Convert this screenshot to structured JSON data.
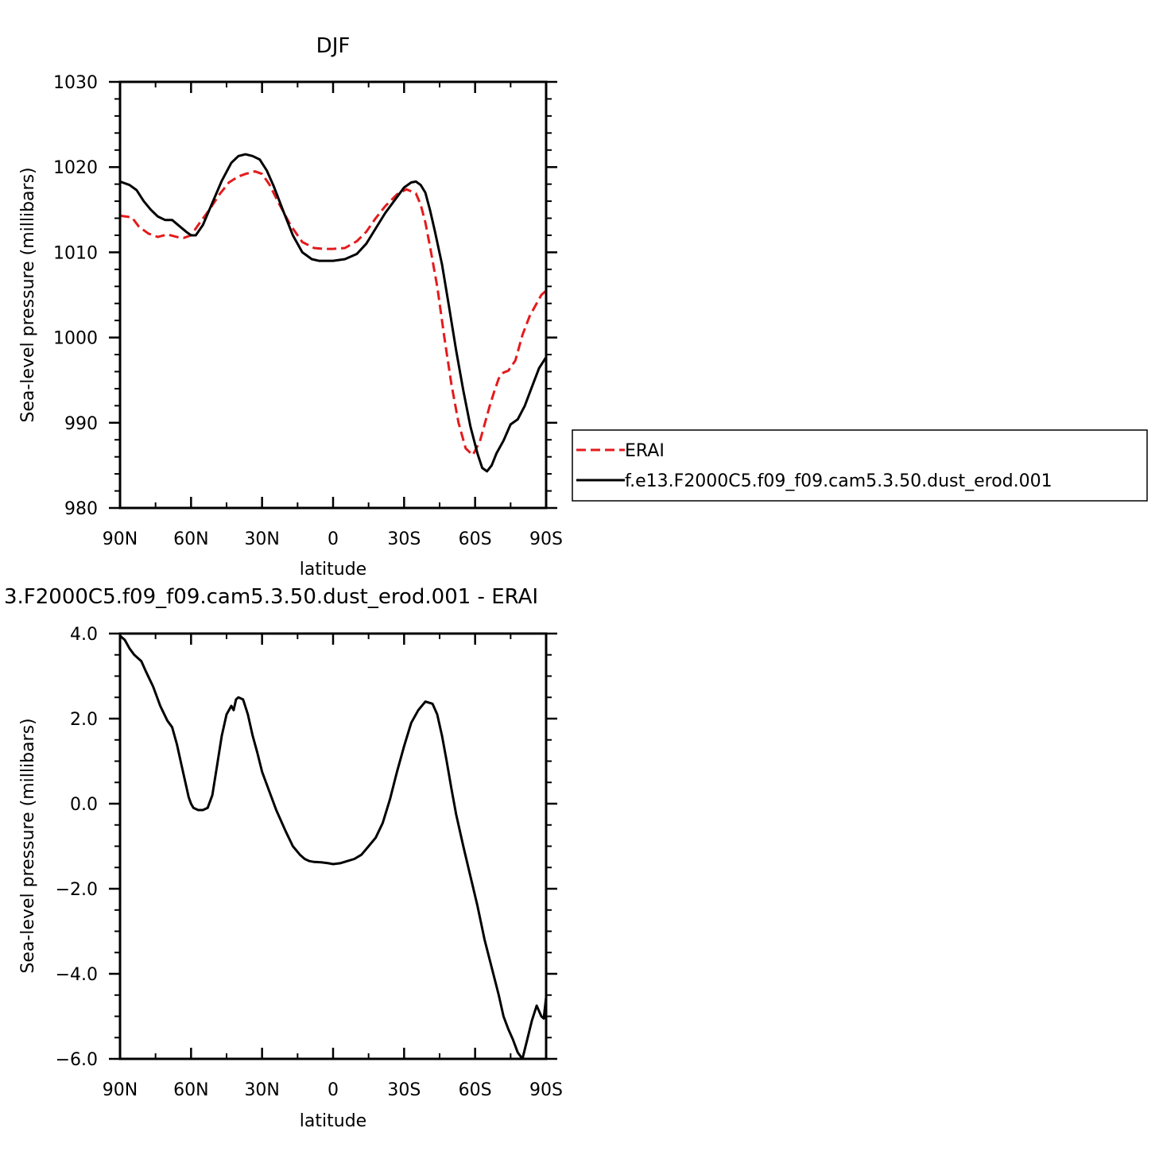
{
  "chart_data": [
    {
      "type": "line",
      "title": "DJF",
      "xlabel": "latitude",
      "ylabel": "Sea-level pressure (millibars)",
      "xlim": [
        90,
        -90
      ],
      "ylim": [
        980,
        1030
      ],
      "xticks": [
        90,
        60,
        30,
        0,
        -30,
        -60,
        -90
      ],
      "xtick_labels": [
        "90N",
        "60N",
        "30N",
        "0",
        "30S",
        "60S",
        "90S"
      ],
      "yticks": [
        980,
        990,
        1000,
        1010,
        1020,
        1030
      ],
      "ytick_labels": [
        "980",
        "990",
        "1000",
        "1010",
        "1020",
        "1030"
      ],
      "legend": {
        "placement": "right"
      },
      "series": [
        {
          "name": "ERAI",
          "color": "#e41a1c",
          "style": "dashed",
          "x": [
            90,
            85,
            82,
            78,
            74,
            70,
            66,
            63,
            60,
            57,
            52,
            48,
            44,
            40,
            37,
            33,
            30,
            27,
            23,
            18,
            13,
            8,
            4,
            0,
            -5,
            -10,
            -14,
            -18,
            -22,
            -27,
            -31,
            -35,
            -37,
            -39,
            -41,
            -44,
            -47,
            -50,
            -53,
            -56,
            -59,
            -62,
            -64,
            -66,
            -68,
            -70,
            -72,
            -74,
            -77,
            -80,
            -83,
            -86,
            -88,
            -90
          ],
          "values": [
            1014.3,
            1014.1,
            1013.0,
            1012.2,
            1011.8,
            1012.1,
            1011.8,
            1011.7,
            1012.0,
            1013.2,
            1015.1,
            1016.8,
            1018.2,
            1018.9,
            1019.2,
            1019.5,
            1019.2,
            1018.0,
            1015.8,
            1013.2,
            1011.2,
            1010.5,
            1010.4,
            1010.4,
            1010.5,
            1011.3,
            1012.4,
            1014.0,
            1015.4,
            1016.8,
            1017.4,
            1016.9,
            1015.6,
            1013.5,
            1010.6,
            1006.0,
            1000.0,
            994.5,
            990.0,
            987.0,
            986.2,
            987.8,
            989.8,
            991.8,
            993.6,
            995.2,
            995.9,
            996.1,
            997.3,
            1000.3,
            1002.5,
            1004.0,
            1005.0,
            1005.5
          ]
        },
        {
          "name": "f.e13.F2000C5.f09_f09.cam5.3.50.dust_erod.001",
          "color": "#000000",
          "style": "solid",
          "x": [
            90,
            86,
            83,
            80,
            77,
            74,
            71,
            68,
            65,
            62,
            60,
            58,
            55,
            51,
            47,
            43,
            40,
            37,
            34,
            31,
            28,
            25,
            21,
            17,
            13,
            9,
            6,
            3,
            0,
            -5,
            -10,
            -14,
            -18,
            -22,
            -26,
            -30,
            -33,
            -35,
            -37,
            -39,
            -41,
            -43,
            -46,
            -49,
            -52,
            -55,
            -58,
            -61,
            -63,
            -65,
            -67,
            -69,
            -72,
            -75,
            -78,
            -81,
            -84,
            -87,
            -90
          ],
          "values": [
            1018.3,
            1017.9,
            1017.3,
            1016.0,
            1015.0,
            1014.2,
            1013.8,
            1013.8,
            1013.1,
            1012.4,
            1012.0,
            1012.0,
            1013.2,
            1015.8,
            1018.4,
            1020.5,
            1021.3,
            1021.5,
            1021.3,
            1020.9,
            1019.6,
            1017.7,
            1014.8,
            1012.0,
            1010.0,
            1009.2,
            1009.0,
            1009.0,
            1009.0,
            1009.2,
            1009.8,
            1011.0,
            1012.8,
            1014.6,
            1016.1,
            1017.6,
            1018.2,
            1018.3,
            1017.9,
            1017.0,
            1014.9,
            1012.5,
            1008.6,
            1003.6,
            998.5,
            993.8,
            989.6,
            986.4,
            984.7,
            984.3,
            985.0,
            986.4,
            987.9,
            989.8,
            990.4,
            992.0,
            994.2,
            996.4,
            997.7
          ]
        }
      ]
    },
    {
      "type": "line",
      "title": "3.F2000C5.f09_f09.cam5.3.50.dust_erod.001 - ERAI",
      "xlabel": "latitude",
      "ylabel": "Sea-level pressure (millibars)",
      "xlim": [
        90,
        -90
      ],
      "ylim": [
        -6.0,
        4.0
      ],
      "xticks": [
        90,
        60,
        30,
        0,
        -30,
        -60,
        -90
      ],
      "xtick_labels": [
        "90N",
        "60N",
        "30N",
        "0",
        "30S",
        "60S",
        "90S"
      ],
      "yticks": [
        -6.0,
        -4.0,
        -2.0,
        0.0,
        2.0,
        4.0
      ],
      "ytick_labels": [
        "−6.0",
        "−4.0",
        "−2.0",
        "0.0",
        "2.0",
        "4.0"
      ],
      "series": [
        {
          "name": "",
          "color": "#000000",
          "style": "solid",
          "x": [
            90,
            88,
            86,
            84,
            81,
            79,
            76,
            73,
            70,
            68,
            66,
            64,
            62,
            61,
            60,
            59,
            57,
            55,
            53,
            51,
            49,
            47,
            45,
            43,
            42,
            41,
            40,
            38,
            36,
            34,
            32,
            30,
            27,
            24,
            20,
            17,
            14,
            12,
            10,
            8,
            5,
            2,
            0,
            -3,
            -6,
            -9,
            -12,
            -15,
            -18,
            -21,
            -24,
            -27,
            -30,
            -33,
            -36,
            -39,
            -42,
            -44,
            -46,
            -48,
            -50,
            -52,
            -55,
            -58,
            -61,
            -64,
            -67,
            -70,
            -72,
            -74,
            -76,
            -78,
            -80,
            -82,
            -84,
            -86,
            -88,
            -89,
            -90
          ],
          "values": [
            3.95,
            3.85,
            3.65,
            3.5,
            3.35,
            3.1,
            2.75,
            2.3,
            1.95,
            1.8,
            1.4,
            0.9,
            0.4,
            0.15,
            0.0,
            -0.1,
            -0.15,
            -0.15,
            -0.1,
            0.2,
            0.9,
            1.6,
            2.1,
            2.3,
            2.2,
            2.45,
            2.5,
            2.45,
            2.1,
            1.6,
            1.2,
            0.75,
            0.3,
            -0.15,
            -0.65,
            -1.0,
            -1.2,
            -1.3,
            -1.35,
            -1.37,
            -1.38,
            -1.4,
            -1.42,
            -1.4,
            -1.35,
            -1.3,
            -1.2,
            -1.0,
            -0.8,
            -0.45,
            0.1,
            0.75,
            1.35,
            1.9,
            2.2,
            2.4,
            2.35,
            2.1,
            1.6,
            1.0,
            0.35,
            -0.25,
            -1.0,
            -1.7,
            -2.4,
            -3.2,
            -3.85,
            -4.5,
            -5.0,
            -5.3,
            -5.55,
            -5.85,
            -6.0,
            -5.55,
            -5.1,
            -4.75,
            -5.0,
            -5.05,
            -4.55
          ]
        }
      ]
    }
  ]
}
